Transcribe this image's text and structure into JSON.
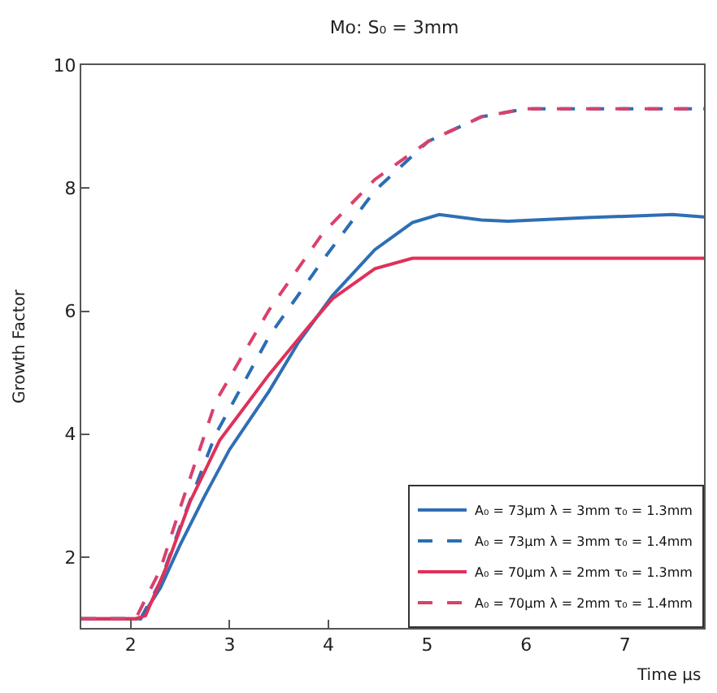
{
  "chart_data": {
    "type": "line",
    "title": "Mo: S₀ = 3mm",
    "xlabel": "Time μs",
    "ylabel": "Growth Factor",
    "xlim": [
      1.5,
      7.8
    ],
    "ylim": [
      0.85,
      10
    ],
    "xticks": [
      2,
      3,
      4,
      5,
      6,
      7
    ],
    "yticks": [
      2,
      4,
      6,
      8,
      10
    ],
    "legend": "bottom right",
    "marker": "none",
    "series": [
      {
        "name": "A₀ = 73μm λ = 3mm τ₀ = 1.3mm",
        "color": "#2e6fb5",
        "line_style": "solid",
        "x": [
          1.5,
          2.1,
          2.3,
          2.5,
          2.75,
          3.0,
          3.4,
          3.7,
          4.04,
          4.47,
          4.85,
          5.12,
          5.55,
          5.82,
          6.62,
          7.48,
          7.8
        ],
        "values": [
          1,
          1,
          1.5,
          2.2,
          3.0,
          3.75,
          4.7,
          5.5,
          6.25,
          7.0,
          7.44,
          7.57,
          7.48,
          7.46,
          7.52,
          7.57,
          7.53
        ]
      },
      {
        "name": "A₀ = 73μm λ = 3mm τ₀ = 1.4mm",
        "color": "#2a6db5",
        "line_style": "dashed",
        "x": [
          1.5,
          2.1,
          2.3,
          2.5,
          2.86,
          3.4,
          3.94,
          4.47,
          5.01,
          5.55,
          6.0,
          7.8
        ],
        "values": [
          1,
          1,
          1.6,
          2.5,
          4.0,
          5.59,
          6.82,
          7.96,
          8.76,
          9.16,
          9.29,
          9.29
        ]
      },
      {
        "name": "A₀ = 70μm λ = 2mm τ₀ = 1.3mm",
        "color": "#e0305a",
        "line_style": "solid",
        "x": [
          1.5,
          2.05,
          2.15,
          2.35,
          2.6,
          2.9,
          3.4,
          3.8,
          4.04,
          4.47,
          4.85,
          5.5,
          7.8
        ],
        "values": [
          1,
          1,
          1.05,
          1.8,
          2.9,
          3.9,
          4.97,
          5.75,
          6.2,
          6.69,
          6.86,
          6.86,
          6.86
        ]
      },
      {
        "name": "A₀ = 70μm λ = 2mm τ₀ = 1.4mm",
        "color": "#d9416b",
        "line_style": "dashed",
        "x": [
          1.5,
          2.05,
          2.3,
          2.5,
          2.86,
          3.4,
          3.94,
          4.47,
          5.01,
          5.55,
          6.0,
          7.8
        ],
        "values": [
          1,
          1,
          1.8,
          2.8,
          4.53,
          6.02,
          7.26,
          8.14,
          8.76,
          9.16,
          9.29,
          9.29
        ]
      }
    ]
  }
}
